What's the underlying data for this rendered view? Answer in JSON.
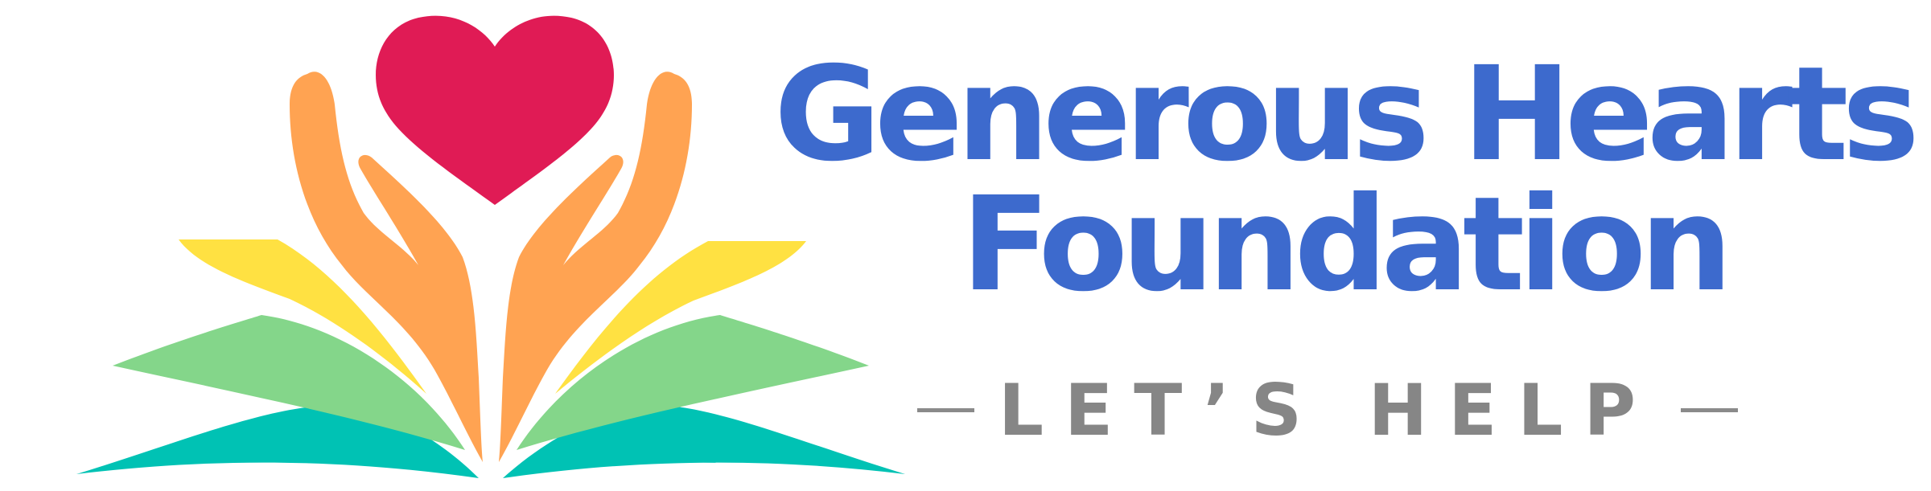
{
  "brand": {
    "name_line1": "Generous Hearts",
    "name_line2": "Foundation",
    "tagline": "LET’S HELP"
  },
  "colors": {
    "heart": "#e01b55",
    "hands": "#ffa352",
    "page_yellow": "#ffe142",
    "page_green": "#84d68a",
    "page_teal": "#00c2b4",
    "title": "#3d6acd",
    "tagline": "#868686"
  },
  "icons": [
    "heart-icon",
    "hands-icon",
    "open-book-icon"
  ]
}
